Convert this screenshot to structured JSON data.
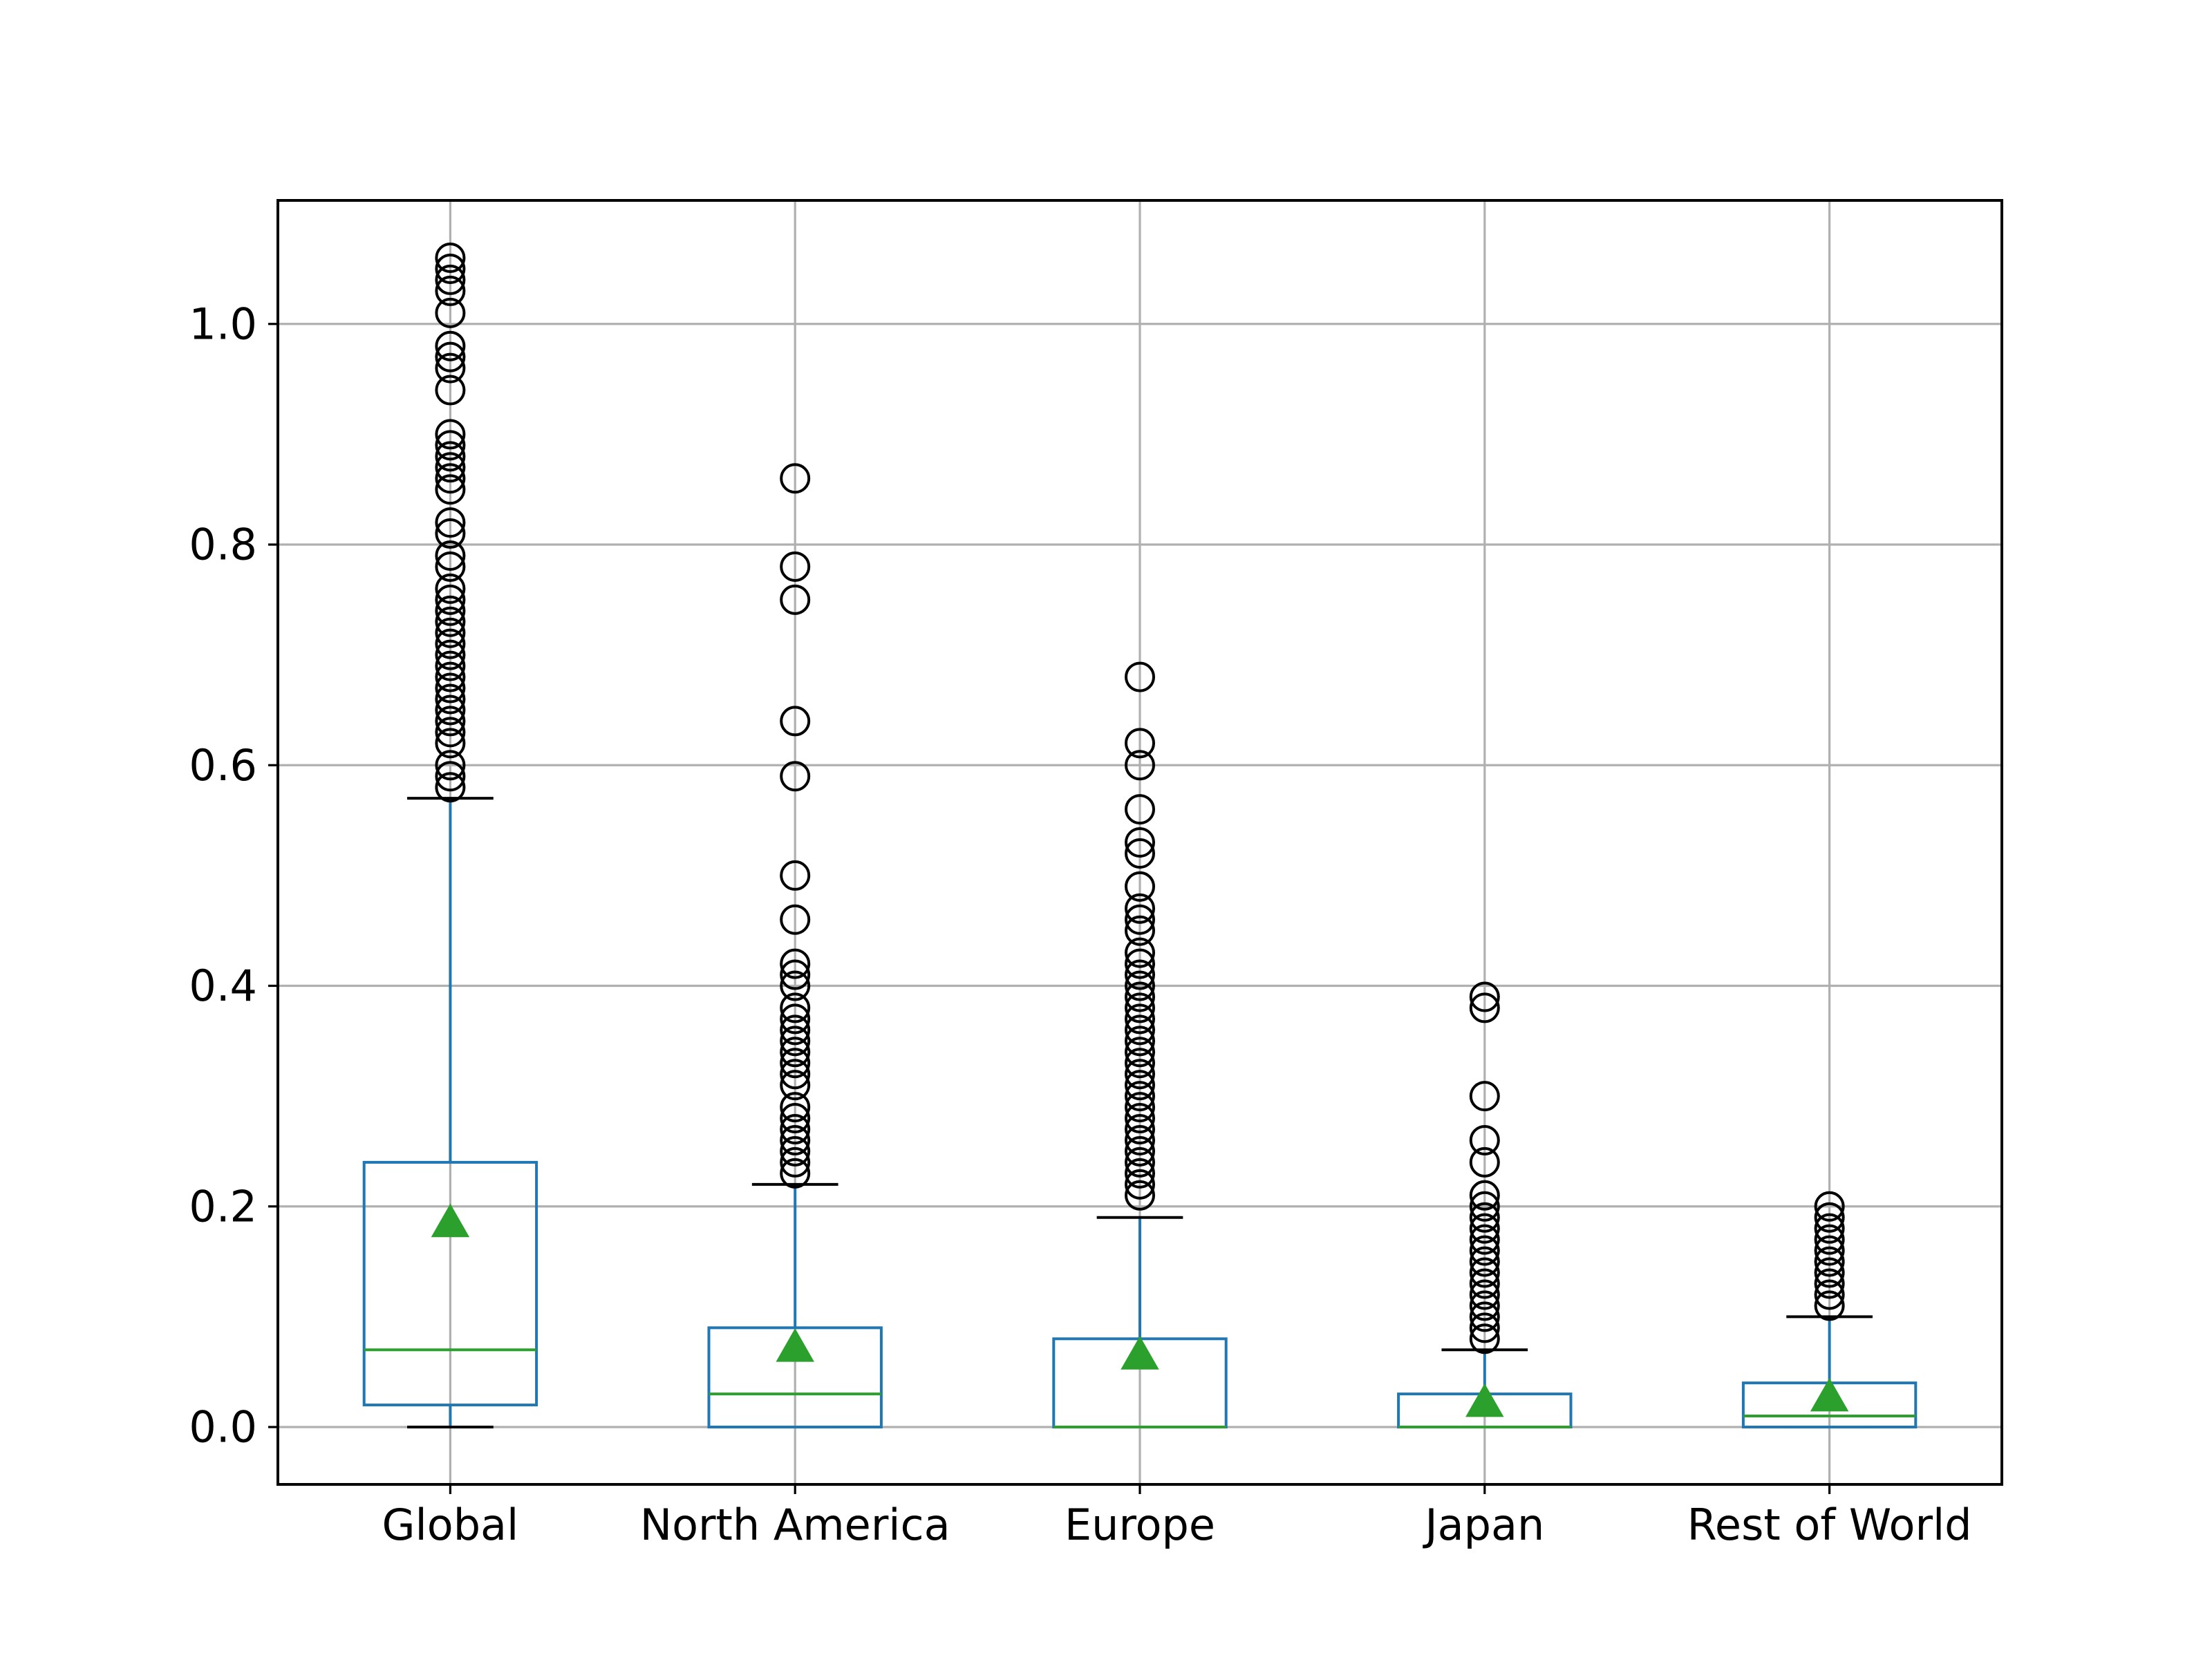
{
  "chart_data": {
    "type": "box",
    "title": "",
    "xlabel": "",
    "ylabel": "",
    "categories": [
      "Global",
      "North America",
      "Europe",
      "Japan",
      "Rest of World"
    ],
    "ylim": [
      -0.052,
      1.112
    ],
    "yticks": [
      0.0,
      0.2,
      0.4,
      0.6,
      0.8,
      1.0
    ],
    "ytick_labels": [
      "0.0",
      "0.2",
      "0.4",
      "0.6",
      "0.8",
      "1.0"
    ],
    "grid": true,
    "show_means": true,
    "colors": {
      "box": "#1f77b4",
      "median": "#2ca02c",
      "mean_marker": "#2ca02c",
      "whisker_cap": "#000000",
      "flier": "#000000",
      "grid": "#b0b0b0"
    },
    "boxes": [
      {
        "category": "Global",
        "whisker_low": 0.0,
        "q1": 0.02,
        "median": 0.07,
        "q3": 0.24,
        "whisker_high": 0.57,
        "mean": 0.185,
        "outliers": [
          0.58,
          0.59,
          0.6,
          0.62,
          0.63,
          0.64,
          0.65,
          0.66,
          0.67,
          0.68,
          0.69,
          0.7,
          0.71,
          0.72,
          0.73,
          0.74,
          0.75,
          0.76,
          0.78,
          0.79,
          0.81,
          0.82,
          0.85,
          0.86,
          0.87,
          0.88,
          0.89,
          0.9,
          0.94,
          0.96,
          0.97,
          0.98,
          1.01,
          1.03,
          1.04,
          1.05,
          1.06
        ]
      },
      {
        "category": "North America",
        "whisker_low": 0.0,
        "q1": 0.0,
        "median": 0.03,
        "q3": 0.09,
        "whisker_high": 0.22,
        "mean": 0.072,
        "outliers": [
          0.23,
          0.24,
          0.25,
          0.26,
          0.27,
          0.28,
          0.29,
          0.31,
          0.32,
          0.33,
          0.34,
          0.35,
          0.36,
          0.37,
          0.38,
          0.4,
          0.41,
          0.42,
          0.46,
          0.5,
          0.59,
          0.64,
          0.75,
          0.78,
          0.86
        ]
      },
      {
        "category": "Europe",
        "whisker_low": 0.0,
        "q1": 0.0,
        "median": 0.0,
        "q3": 0.08,
        "whisker_high": 0.19,
        "mean": 0.065,
        "outliers": [
          0.21,
          0.22,
          0.23,
          0.24,
          0.25,
          0.26,
          0.27,
          0.28,
          0.29,
          0.3,
          0.31,
          0.32,
          0.33,
          0.34,
          0.35,
          0.36,
          0.37,
          0.38,
          0.39,
          0.4,
          0.41,
          0.42,
          0.43,
          0.45,
          0.46,
          0.47,
          0.49,
          0.52,
          0.53,
          0.56,
          0.6,
          0.62,
          0.68
        ]
      },
      {
        "category": "Japan",
        "whisker_low": 0.0,
        "q1": 0.0,
        "median": 0.0,
        "q3": 0.03,
        "whisker_high": 0.07,
        "mean": 0.022,
        "outliers": [
          0.08,
          0.09,
          0.1,
          0.11,
          0.12,
          0.13,
          0.14,
          0.15,
          0.16,
          0.17,
          0.18,
          0.19,
          0.2,
          0.21,
          0.24,
          0.26,
          0.3,
          0.38,
          0.39
        ]
      },
      {
        "category": "Rest of World",
        "whisker_low": 0.0,
        "q1": 0.0,
        "median": 0.01,
        "q3": 0.04,
        "whisker_high": 0.1,
        "mean": 0.027,
        "outliers": [
          0.11,
          0.12,
          0.13,
          0.14,
          0.15,
          0.16,
          0.17,
          0.18,
          0.19,
          0.2
        ]
      }
    ]
  }
}
